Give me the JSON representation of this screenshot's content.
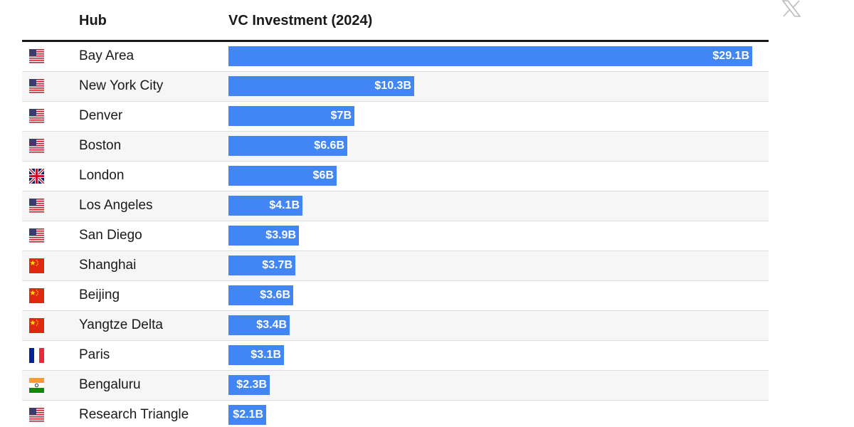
{
  "header": {
    "hub_label": "Hub",
    "vc_label": "VC Investment (2024)"
  },
  "close_icon": "x-logo-icon",
  "colors": {
    "bar": "#4285f4",
    "row_alt": "#f6f6f6",
    "rule": "#1a1a1a"
  },
  "chart_data": {
    "type": "bar",
    "orientation": "horizontal",
    "title": "",
    "xlabel": "VC Investment (2024)",
    "ylabel": "Hub",
    "unit": "$B",
    "xlim": [
      0,
      29.1
    ],
    "grid": false,
    "categories": [
      "Bay Area",
      "New York City",
      "Denver",
      "Boston",
      "London",
      "Los Angeles",
      "San Diego",
      "Shanghai",
      "Beijing",
      "Yangtze Delta",
      "Paris",
      "Bengaluru",
      "Research Triangle"
    ],
    "values": [
      29.1,
      10.3,
      7.0,
      6.6,
      6.0,
      4.1,
      3.9,
      3.7,
      3.6,
      3.4,
      3.1,
      2.3,
      2.1
    ],
    "data_labels": [
      "$29.1B",
      "$10.3B",
      "$7B",
      "$6.6B",
      "$6B",
      "$4.1B",
      "$3.9B",
      "$3.7B",
      "$3.6B",
      "$3.4B",
      "$3.1B",
      "$2.3B",
      "$2.1B"
    ],
    "flags": [
      "us-flag-icon",
      "us-flag-icon",
      "us-flag-icon",
      "us-flag-icon",
      "uk-flag-icon",
      "us-flag-icon",
      "us-flag-icon",
      "china-flag-icon",
      "china-flag-icon",
      "china-flag-icon",
      "france-flag-icon",
      "india-flag-icon",
      "us-flag-icon"
    ]
  }
}
